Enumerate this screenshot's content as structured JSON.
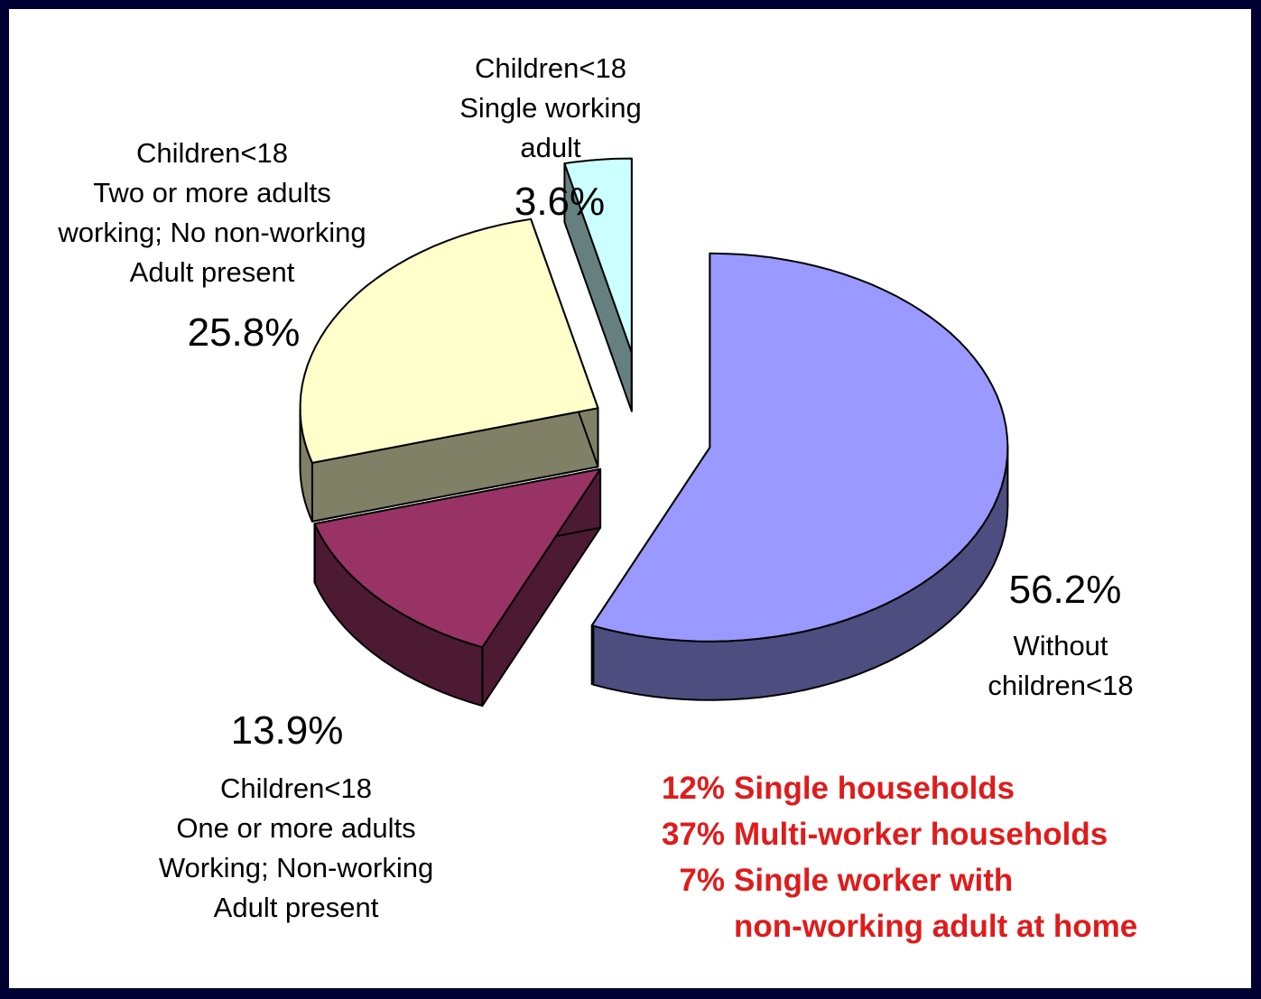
{
  "chart_data": {
    "type": "pie",
    "title": "",
    "slices": [
      {
        "label_lines": [
          "Without",
          "children<18"
        ],
        "pct_label": "56.2%",
        "value": 56.2,
        "color": "#9999ff",
        "side_color": "#4d4d80"
      },
      {
        "label_lines": [
          "Children<18",
          "One or more adults",
          "Working; Non-working",
          "Adult present"
        ],
        "pct_label": "13.9%",
        "value": 13.9,
        "color": "#993366",
        "side_color": "#4d1a33"
      },
      {
        "label_lines": [
          "Children<18",
          "Two or more adults",
          "working; No non-working",
          "Adult present"
        ],
        "pct_label": "25.8%",
        "value": 25.8,
        "color": "#ffffcc",
        "side_color": "#808066"
      },
      {
        "label_lines": [
          "Children<18",
          "Single working",
          "adult"
        ],
        "pct_label": "3.6%",
        "value": 3.6,
        "color": "#ccffff",
        "side_color": "#668080"
      }
    ],
    "legend": "none"
  },
  "notes": [
    {
      "pct": "12%",
      "lines": [
        "Single households"
      ]
    },
    {
      "pct": "37%",
      "lines": [
        "Multi-worker households"
      ]
    },
    {
      "pct": "7%",
      "lines": [
        "Single worker with",
        "non-working adult at home"
      ]
    }
  ],
  "colors": {
    "frame": "#000033",
    "note_text": "#e01b1b",
    "outline": "#000000"
  }
}
